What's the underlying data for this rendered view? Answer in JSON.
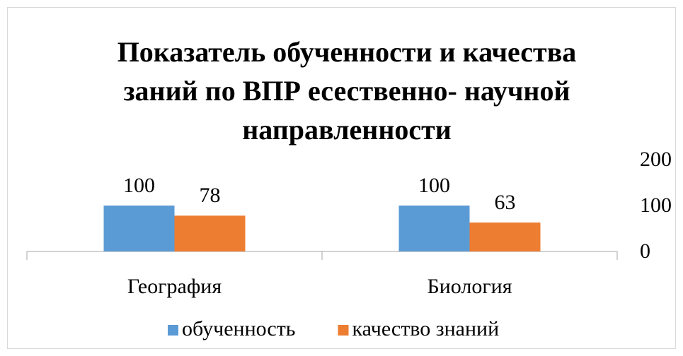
{
  "chart_data": {
    "type": "bar",
    "title": "Показатель обученности и качества заний по ВПР есественно- научной направленности",
    "categories": [
      "География",
      "Биология"
    ],
    "series": [
      {
        "name": "обученность",
        "color": "#5b9bd5",
        "values": [
          100,
          100
        ]
      },
      {
        "name": "качество знаний",
        "color": "#ed7d31",
        "values": [
          78,
          63
        ]
      }
    ],
    "ylim": [
      0,
      200
    ],
    "yticks": [
      0,
      100,
      200
    ],
    "y_axis_side": "right",
    "grid": false,
    "legend": "bottom"
  }
}
